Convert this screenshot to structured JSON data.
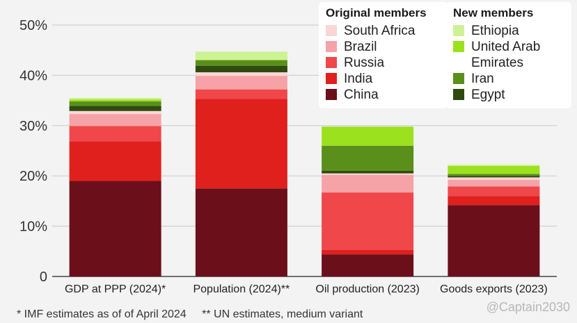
{
  "chart_data": {
    "type": "bar",
    "stacked": true,
    "categories": [
      "GDP at PPP (2024)*",
      "Population (2024)**",
      "Oil production (2023)",
      "Goods exports (2023)"
    ],
    "series": [
      {
        "name": "China",
        "color": "#6b0f1a",
        "values": [
          19.0,
          17.5,
          4.4,
          14.2
        ]
      },
      {
        "name": "India",
        "color": "#e0201d",
        "values": [
          7.9,
          17.8,
          0.9,
          1.8
        ]
      },
      {
        "name": "Russia",
        "color": "#f0474a",
        "values": [
          3.0,
          1.9,
          11.4,
          1.9
        ]
      },
      {
        "name": "Brazil",
        "color": "#f5a3a6",
        "values": [
          2.4,
          2.7,
          3.5,
          1.3
        ]
      },
      {
        "name": "South Africa",
        "color": "#fbd6d7",
        "values": [
          0.6,
          0.7,
          0.3,
          0.5
        ]
      },
      {
        "name": "Egypt",
        "color": "#2e4a0f",
        "values": [
          1.0,
          1.3,
          0.5,
          0.3
        ]
      },
      {
        "name": "Iran",
        "color": "#5a8f1c",
        "values": [
          0.9,
          1.1,
          5.0,
          0.4
        ]
      },
      {
        "name": "United Arab Emirates",
        "color": "#9ce11d",
        "values": [
          0.4,
          0.1,
          3.8,
          1.6
        ]
      },
      {
        "name": "Ethiopia",
        "color": "#cdf295",
        "values": [
          0.3,
          1.6,
          0.0,
          0.2
        ]
      }
    ],
    "yticks": [
      "0",
      "10%",
      "20%",
      "30%",
      "40%",
      "50%"
    ],
    "ylim": [
      0,
      50
    ],
    "grid": true,
    "legend": [
      {
        "title": "Original members",
        "items": [
          {
            "name": "South Africa",
            "color": "#fbd6d7"
          },
          {
            "name": "Brazil",
            "color": "#f5a3a6"
          },
          {
            "name": "Russia",
            "color": "#f0474a"
          },
          {
            "name": "India",
            "color": "#e0201d"
          },
          {
            "name": "China",
            "color": "#6b0f1a"
          }
        ]
      },
      {
        "title": "New members",
        "items": [
          {
            "name": "Ethiopia",
            "color": "#cdf295"
          },
          {
            "name": "United Arab Emirates",
            "color": "#9ce11d"
          },
          {
            "name": "Iran",
            "color": "#5a8f1c"
          },
          {
            "name": "Egypt",
            "color": "#2e4a0f"
          }
        ]
      }
    ]
  },
  "footnotes": [
    "* IMF estimates as of of April 2024",
    "** UN estimates, medium variant"
  ],
  "watermark": "@Captain2030"
}
